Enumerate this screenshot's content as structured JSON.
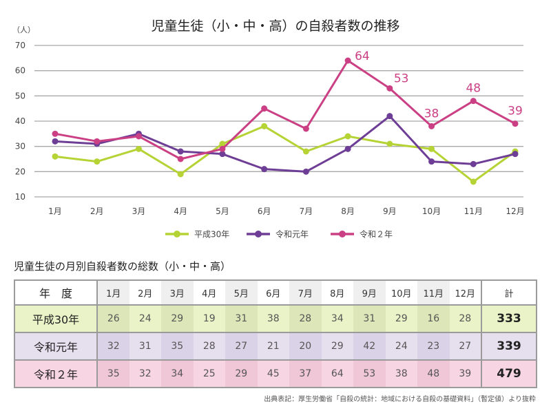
{
  "chart_data": {
    "type": "line",
    "title": "児童生徒（小・中・高）の自殺者数の推移",
    "ylabel": "（人）",
    "xlabel": "",
    "ylim": [
      10,
      70
    ],
    "yticks": [
      70,
      60,
      50,
      40,
      30,
      20,
      10
    ],
    "grid": true,
    "legend_position": "bottom",
    "categories": [
      "1月",
      "2月",
      "3月",
      "4月",
      "5月",
      "6月",
      "7月",
      "8月",
      "9月",
      "10月",
      "11月",
      "12月"
    ],
    "series": [
      {
        "name": "平成30年",
        "color": "#b5d334",
        "values": [
          26,
          24,
          29,
          19,
          31,
          38,
          28,
          34,
          31,
          29,
          16,
          28
        ]
      },
      {
        "name": "令和元年",
        "color": "#6e3e96",
        "values": [
          32,
          31,
          35,
          28,
          27,
          21,
          20,
          29,
          42,
          24,
          23,
          27
        ]
      },
      {
        "name": "令和２年",
        "color": "#cb3f84",
        "values": [
          35,
          32,
          34,
          25,
          29,
          45,
          37,
          64,
          53,
          38,
          48,
          39
        ]
      }
    ],
    "annotations": [
      {
        "series": "令和２年",
        "month": "8月",
        "text": "64"
      },
      {
        "series": "令和２年",
        "month": "9月",
        "text": "53"
      },
      {
        "series": "令和２年",
        "month": "10月",
        "text": "38"
      },
      {
        "series": "令和２年",
        "month": "11月",
        "text": "48"
      },
      {
        "series": "令和２年",
        "month": "12月",
        "text": "39"
      }
    ]
  },
  "table": {
    "title": "児童生徒の月別自殺者数の総数（小・中・高）",
    "year_header": "年　度",
    "total_header": "計",
    "months": [
      "1月",
      "2月",
      "3月",
      "4月",
      "5月",
      "6月",
      "7月",
      "8月",
      "9月",
      "10月",
      "11月",
      "12月"
    ],
    "rows": [
      {
        "year": "平成30年",
        "values": [
          26,
          24,
          29,
          19,
          31,
          38,
          28,
          34,
          31,
          29,
          16,
          28
        ],
        "total": "333"
      },
      {
        "year": "令和元年",
        "values": [
          32,
          31,
          35,
          28,
          27,
          21,
          20,
          29,
          42,
          24,
          23,
          27
        ],
        "total": "339"
      },
      {
        "year": "令和２年",
        "values": [
          35,
          32,
          34,
          25,
          29,
          45,
          37,
          64,
          53,
          38,
          48,
          39
        ],
        "total": "479"
      }
    ]
  },
  "source": "出典表記：厚生労働省「自殺の統計：地域における自殺の基礎資料」（暫定値）より抜粋"
}
